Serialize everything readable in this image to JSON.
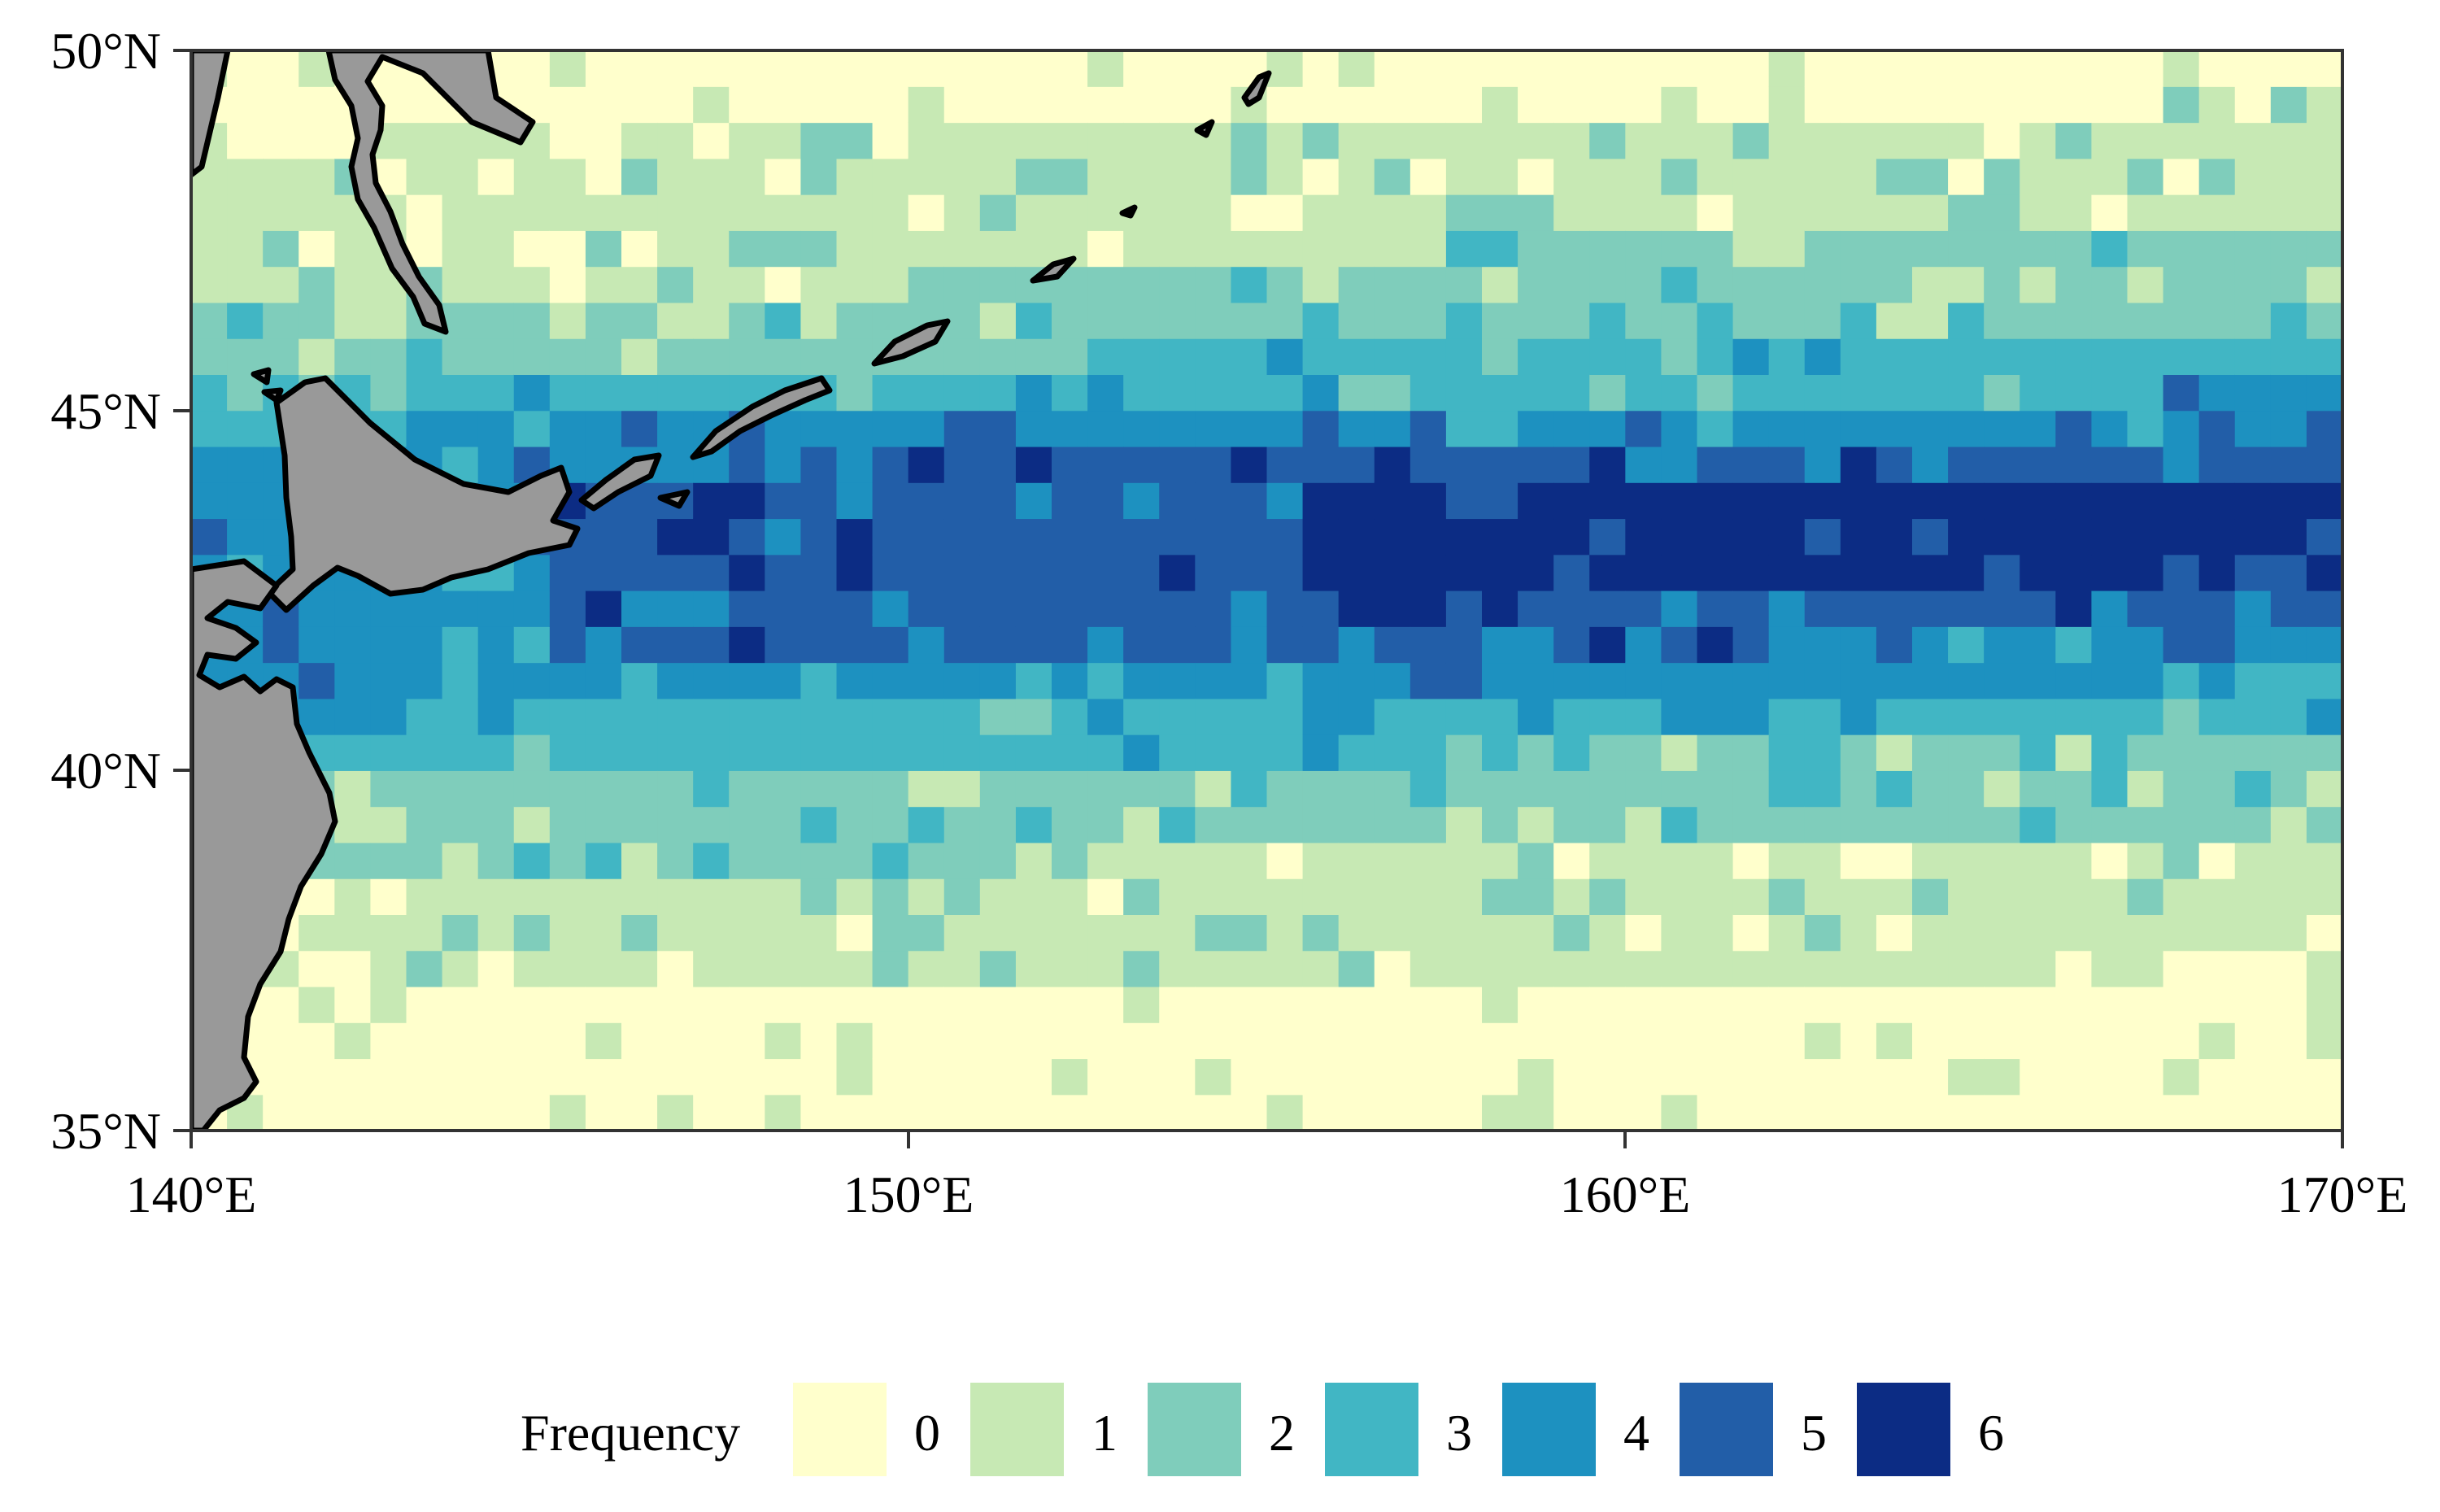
{
  "map": {
    "extent": {
      "lon": [
        140,
        170
      ],
      "lat": [
        35,
        50
      ]
    },
    "grid_step_deg": 0.5,
    "x_ticks": [
      "140°E",
      "150°E",
      "160°E",
      "170°E"
    ],
    "y_ticks": [
      "50°N",
      "45°N",
      "40°N",
      "35°N"
    ],
    "land_color": "#999999",
    "coast_color": "#000000"
  },
  "chart_data": {
    "type": "heatmap",
    "xlabel": "",
    "ylabel": "",
    "xlim": [
      140,
      170
    ],
    "ylim": [
      35,
      50
    ],
    "value_legend_title": "Frequency",
    "levels": [
      0,
      1,
      2,
      3,
      4,
      5,
      6
    ],
    "zones_description_units": "lon/lat degrees",
    "frequency_bands_approx": [
      {
        "value": 6,
        "lat": [
          42.3,
          44.0
        ],
        "lon": [
          156.0,
          165.5
        ]
      },
      {
        "value": 5,
        "lat": [
          41.3,
          44.8
        ],
        "lon": [
          145.5,
          170.0
        ]
      },
      {
        "value": 4,
        "lat": [
          40.8,
          45.3
        ],
        "lon": [
          143.5,
          170.0
        ]
      },
      {
        "value": 3,
        "lat": [
          40.0,
          46.2
        ],
        "lon": [
          142.0,
          170.0
        ]
      },
      {
        "value": 2,
        "lat": [
          37.5,
          48.5
        ],
        "lon": [
          141.5,
          170.0
        ]
      },
      {
        "value": 1,
        "lat": [
          36.0,
          50.0
        ],
        "lon": [
          140.5,
          170.0
        ]
      },
      {
        "value": 0,
        "lat": [
          35.0,
          50.0
        ],
        "lon": [
          140.0,
          170.0
        ]
      }
    ]
  },
  "legend": {
    "title": "Frequency",
    "items": [
      {
        "label": "0",
        "color": "#ffffcc"
      },
      {
        "label": "1",
        "color": "#c7e9b4"
      },
      {
        "label": "2",
        "color": "#7fcdbb"
      },
      {
        "label": "3",
        "color": "#41b6c4"
      },
      {
        "label": "4",
        "color": "#1d91c0"
      },
      {
        "label": "5",
        "color": "#225ea8"
      },
      {
        "label": "6",
        "color": "#0c2c84"
      }
    ]
  }
}
